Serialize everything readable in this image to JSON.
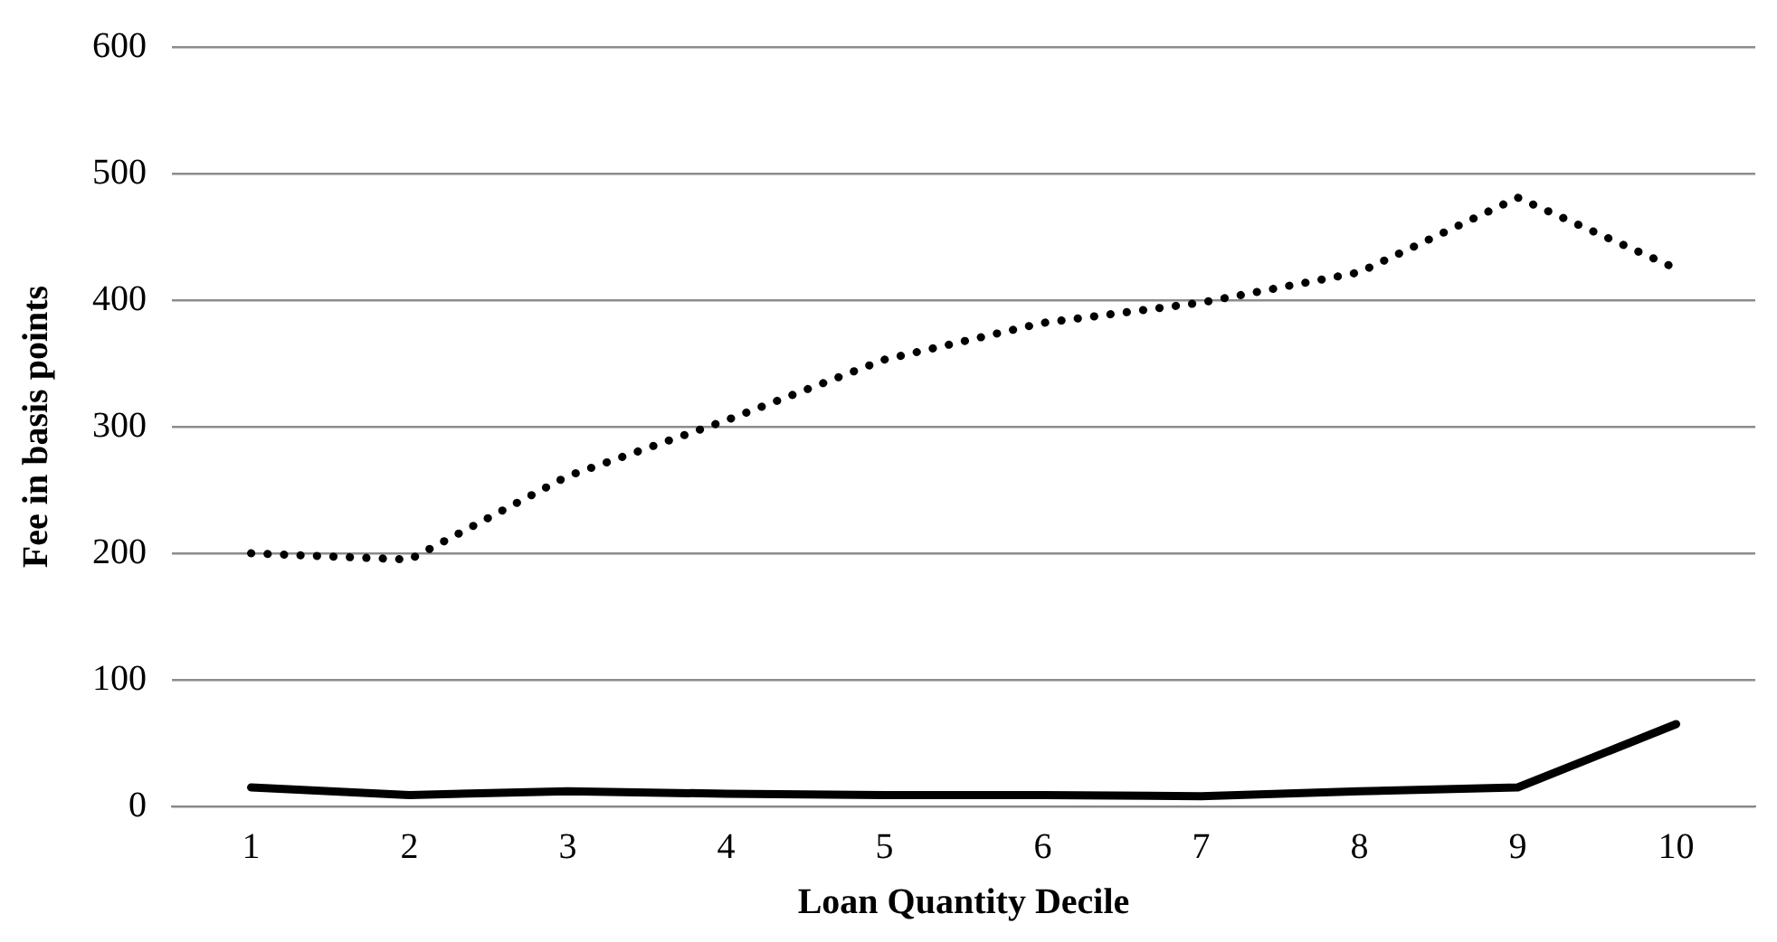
{
  "chart_data": {
    "type": "line",
    "xlabel": "Loan Quantity Decile",
    "ylabel": "Fee in basis points",
    "categories": [
      "1",
      "2",
      "3",
      "4",
      "5",
      "6",
      "7",
      "8",
      "9",
      "10"
    ],
    "series": [
      {
        "color": "#000000",
        "line_style": "dotted",
        "values": [
          200,
          195,
          261,
          305,
          353,
          382,
          398,
          422,
          481,
          425
        ]
      },
      {
        "color": "#000000",
        "line_style": "solid",
        "values": [
          15,
          9,
          12,
          10,
          9,
          9,
          8,
          12,
          15,
          65
        ]
      }
    ],
    "ylim": [
      0,
      600
    ],
    "yticks": [
      0,
      100,
      200,
      300,
      400,
      500,
      600
    ],
    "grid": "y",
    "legend": false,
    "marker": "none"
  }
}
